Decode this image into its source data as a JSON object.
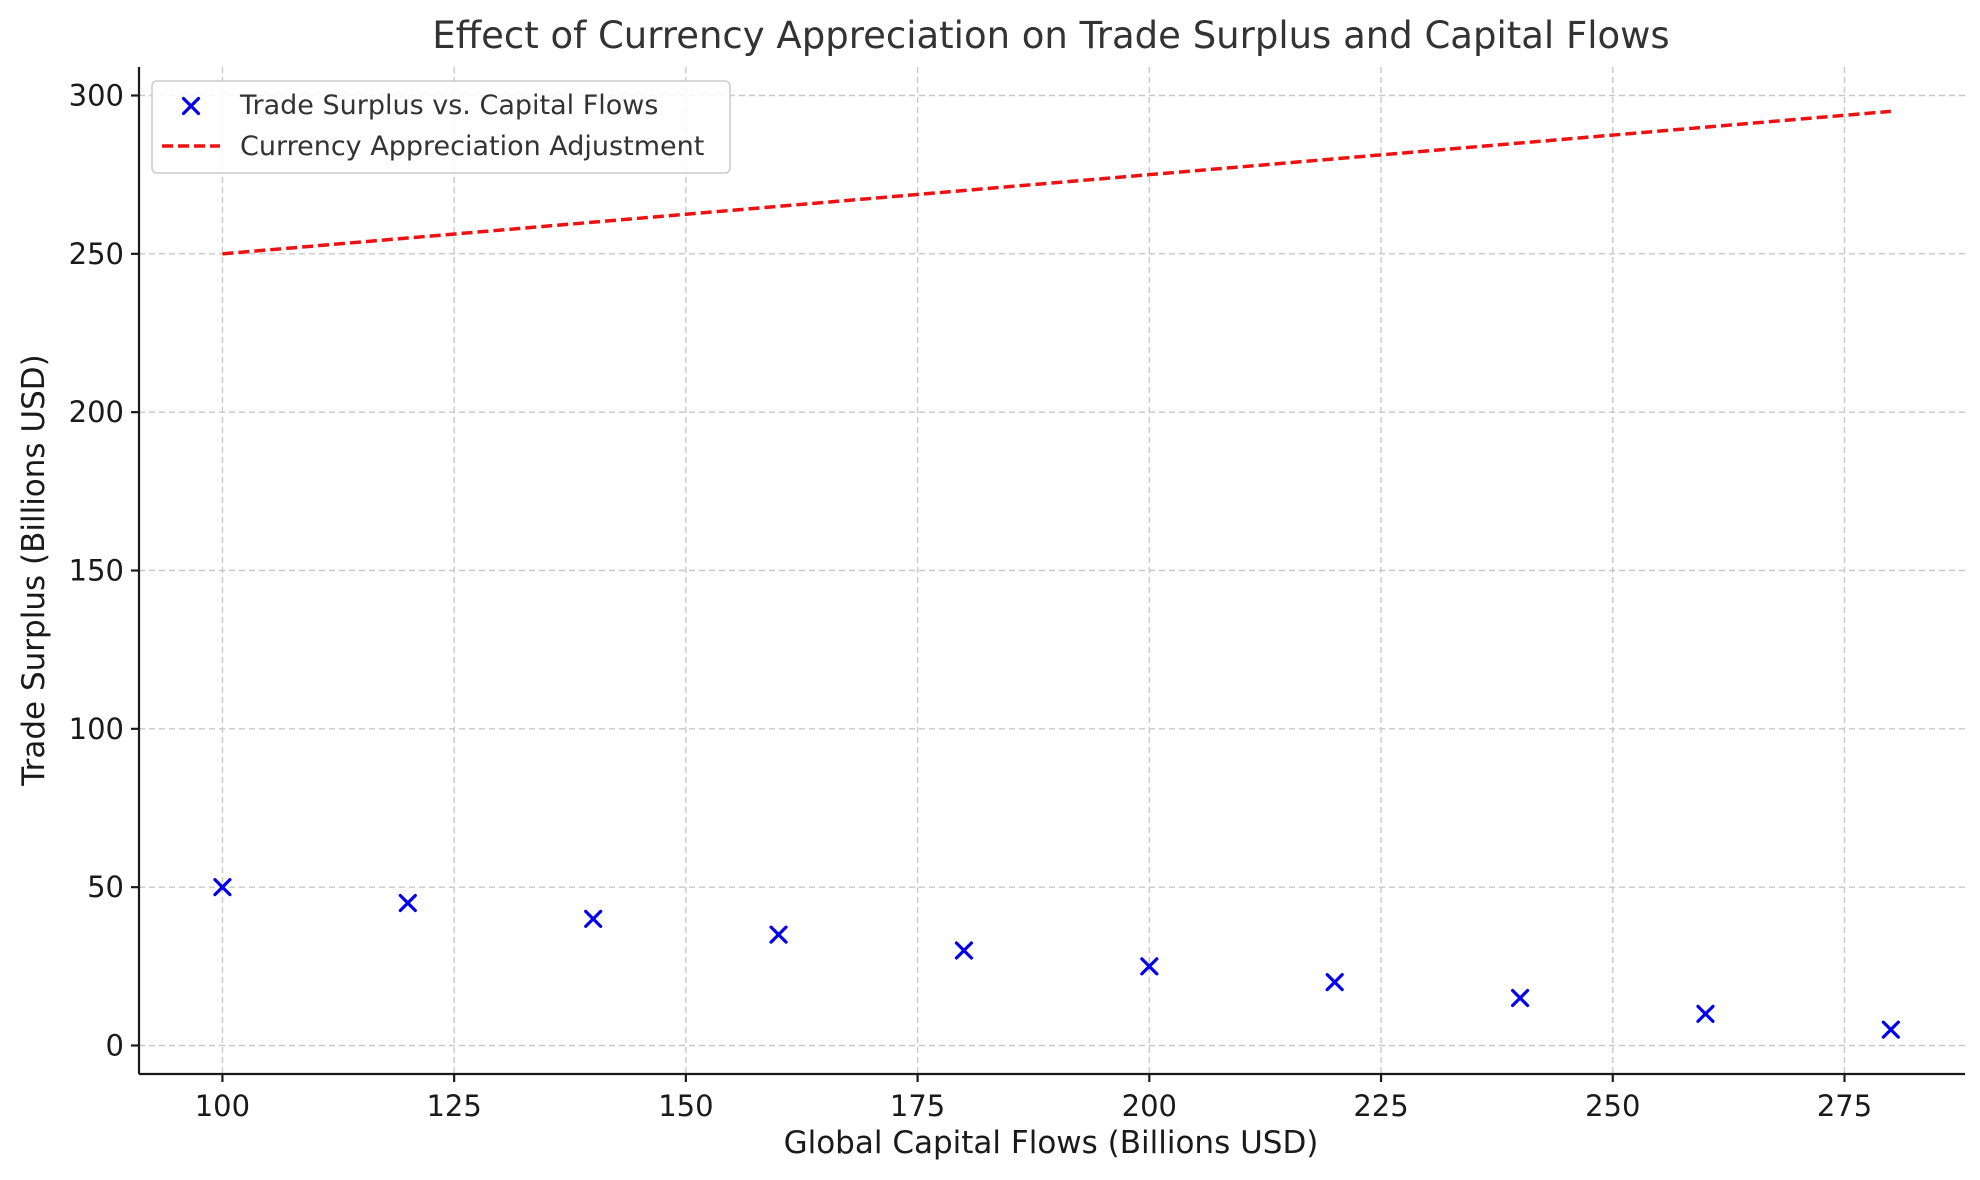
{
  "chart_data": {
    "type": "scatter",
    "title": "Effect of Currency Appreciation on Trade Surplus and Capital Flows",
    "xlabel": "Global Capital Flows (Billions USD)",
    "ylabel": "Trade Surplus (Billions USD)",
    "xlim": [
      91,
      288
    ],
    "ylim": [
      -9,
      309
    ],
    "xticks": [
      100,
      125,
      150,
      175,
      200,
      225,
      250,
      275
    ],
    "yticks": [
      0,
      50,
      100,
      150,
      200,
      250,
      300
    ],
    "grid": true,
    "legend_position": "top-left",
    "series": [
      {
        "name": "Trade Surplus vs. Capital Flows",
        "kind": "scatter",
        "marker": "x",
        "color": "#0000ee",
        "x": [
          100,
          120,
          140,
          160,
          180,
          200,
          220,
          240,
          260,
          280
        ],
        "y": [
          50,
          45,
          40,
          35,
          30,
          25,
          20,
          15,
          10,
          5
        ]
      },
      {
        "name": "Currency Appreciation Adjustment",
        "kind": "line",
        "style": "dashed",
        "color": "#ee1111",
        "x": [
          100,
          120,
          140,
          160,
          180,
          200,
          220,
          240,
          260,
          280
        ],
        "y": [
          250,
          255,
          260,
          265,
          270,
          275,
          280,
          285,
          290,
          295
        ]
      }
    ]
  }
}
